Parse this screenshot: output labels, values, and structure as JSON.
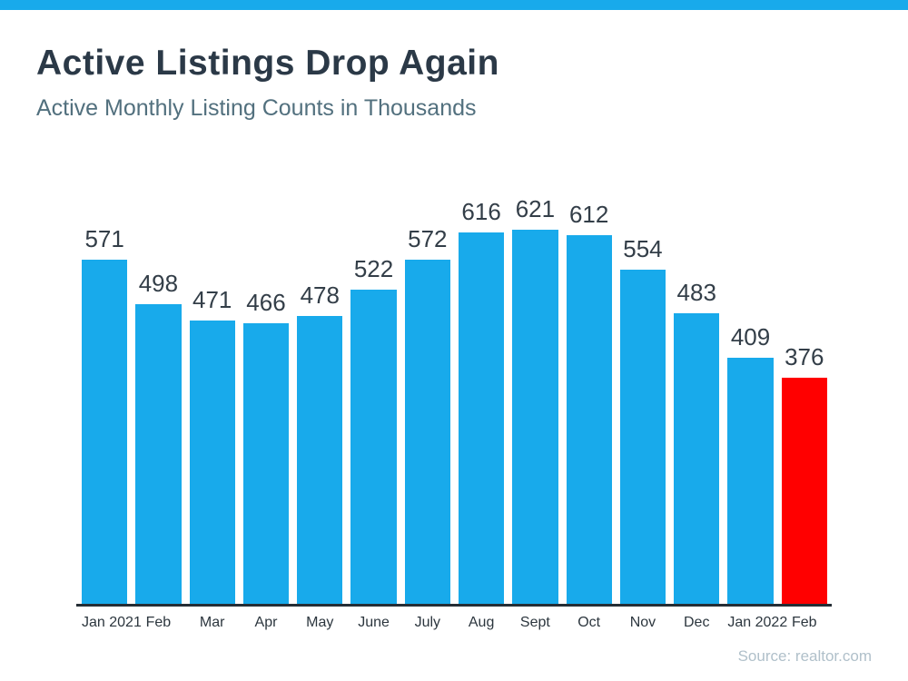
{
  "page": {
    "title": "Active Listings Drop Again",
    "subtitle": "Active Monthly Listing Counts in Thousands",
    "source": "Source: realtor.com"
  },
  "chart_data": {
    "type": "bar",
    "title": "Active Listings Drop Again",
    "subtitle": "Active Monthly Listing Counts in Thousands",
    "categories": [
      "Jan 2021",
      "Feb",
      "Mar",
      "Apr",
      "May",
      "June",
      "July",
      "Aug",
      "Sept",
      "Oct",
      "Nov",
      "Dec",
      "Jan 2022",
      "Feb"
    ],
    "values": [
      571,
      498,
      471,
      466,
      478,
      522,
      572,
      616,
      621,
      612,
      554,
      483,
      409,
      376
    ],
    "xlabel": "",
    "ylabel": "",
    "ylim": [
      0,
      621
    ],
    "grid": false,
    "legend": false,
    "value_labels_shown": true,
    "bar_color": "#18aaeb",
    "highlight_color": "#ff0000",
    "highlight_index": 13,
    "accent_strip_color": "#18aaeb",
    "axis_line_color": "#252e35",
    "source": "Source: realtor.com"
  }
}
